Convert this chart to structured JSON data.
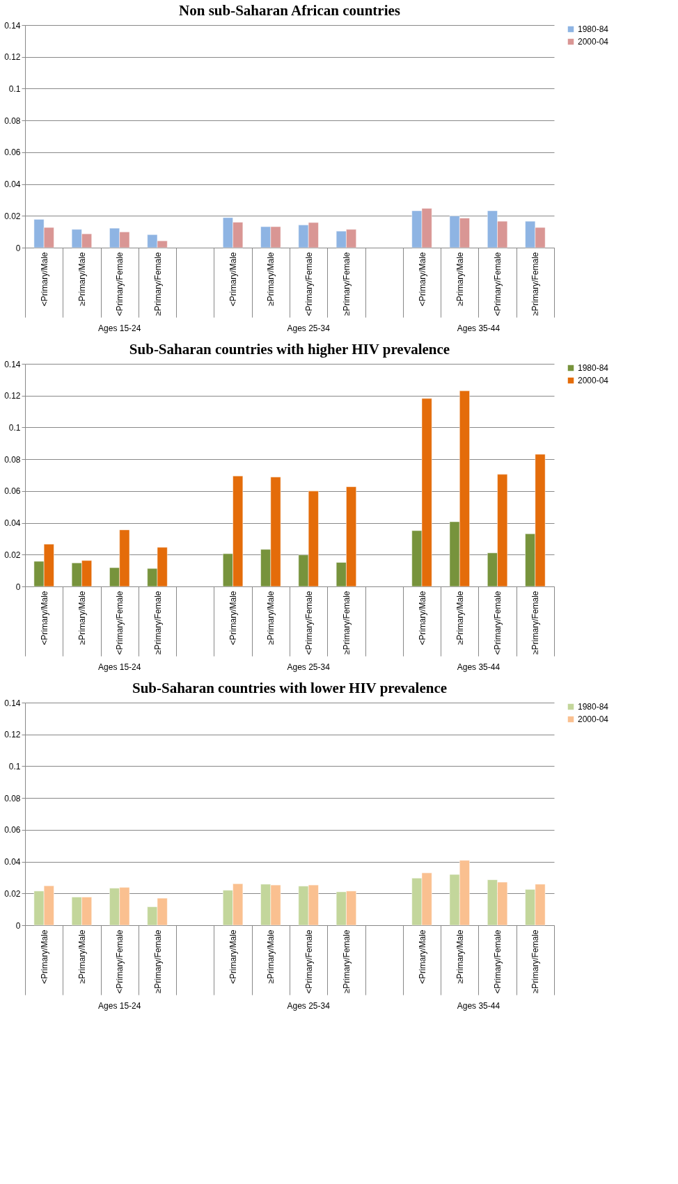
{
  "chart_data": [
    {
      "type": "bar",
      "title": "Non sub-Saharan African countries",
      "categories": [
        "<Primary/Male",
        "≥Primary/Male",
        "<Primary/Female",
        "≥Primary/Female",
        null,
        "<Primary/Male",
        "≥Primary/Male",
        "<Primary/Female",
        "≥Primary/Female",
        null,
        "<Primary/Male",
        "≥Primary/Male",
        "<Primary/Female",
        "≥Primary/Female"
      ],
      "series": [
        {
          "name": "1980-84",
          "color": "#8eb4e3",
          "values": [
            0.0178,
            0.0115,
            0.0122,
            0.0082,
            null,
            0.0189,
            0.0132,
            0.0143,
            0.0104,
            null,
            0.0232,
            0.0199,
            0.0232,
            0.0166
          ]
        },
        {
          "name": "2000-04",
          "color": "#d99694",
          "values": [
            0.0127,
            0.0087,
            0.0099,
            0.0043,
            null,
            0.016,
            0.0132,
            0.0158,
            0.0115,
            null,
            0.0247,
            0.0186,
            0.0166,
            0.0127
          ]
        }
      ],
      "annotations": [
        "Ages 15-24",
        "Ages 25-34",
        "Ages 35-44"
      ],
      "ylim": [
        0,
        0.14
      ],
      "yticks": [
        0,
        0.02,
        0.04,
        0.06,
        0.08,
        0.1,
        0.12,
        0.14
      ],
      "grid": "y",
      "legend": "right"
    },
    {
      "type": "bar",
      "title": "Sub-Saharan countries with higher HIV prevalence",
      "categories": [
        "<Primary/Male",
        "≥Primary/Male",
        "<Primary/Female",
        "≥Primary/Female",
        null,
        "<Primary/Male",
        "≥Primary/Male",
        "<Primary/Female",
        "≥Primary/Female",
        null,
        "<Primary/Male",
        "≥Primary/Male",
        "<Primary/Female",
        "≥Primary/Female"
      ],
      "series": [
        {
          "name": "1980-84",
          "color": "#77933c",
          "values": [
            0.0158,
            0.0148,
            0.0118,
            0.0113,
            null,
            0.0206,
            0.0233,
            0.0198,
            0.0151,
            null,
            0.0351,
            0.0407,
            0.0211,
            0.0331
          ]
        },
        {
          "name": "2000-04",
          "color": "#e46c0a",
          "values": [
            0.0266,
            0.0163,
            0.0356,
            0.0246,
            null,
            0.0695,
            0.0688,
            0.06,
            0.0627,
            null,
            0.1182,
            0.123,
            0.0705,
            0.0831
          ]
        }
      ],
      "annotations": [
        "Ages 15-24",
        "Ages 25-34",
        "Ages 35-44"
      ],
      "ylim": [
        0,
        0.14
      ],
      "yticks": [
        0,
        0.02,
        0.04,
        0.06,
        0.08,
        0.1,
        0.12,
        0.14
      ],
      "grid": "y",
      "legend": "right"
    },
    {
      "type": "bar",
      "title": "Sub-Saharan countries with lower HIV prevalence",
      "categories": [
        "<Primary/Male",
        "≥Primary/Male",
        "<Primary/Female",
        "≥Primary/Female",
        null,
        "<Primary/Male",
        "≥Primary/Male",
        "<Primary/Female",
        "≥Primary/Female",
        null,
        "<Primary/Male",
        "≥Primary/Male",
        "<Primary/Female",
        "≥Primary/Female"
      ],
      "series": [
        {
          "name": "1980-84",
          "color": "#c3d69b",
          "values": [
            0.0215,
            0.0177,
            0.0233,
            0.0116,
            null,
            0.022,
            0.0258,
            0.0246,
            0.021,
            null,
            0.0296,
            0.0319,
            0.0286,
            0.0225
          ]
        },
        {
          "name": "2000-04",
          "color": "#fac090",
          "values": [
            0.0248,
            0.0177,
            0.0238,
            0.017,
            null,
            0.0261,
            0.0253,
            0.0253,
            0.0215,
            null,
            0.0329,
            0.0408,
            0.0271,
            0.0258
          ]
        }
      ],
      "annotations": [
        "Ages 15-24",
        "Ages 25-34",
        "Ages 35-44"
      ],
      "ylim": [
        0,
        0.14
      ],
      "yticks": [
        0,
        0.02,
        0.04,
        0.06,
        0.08,
        0.1,
        0.12,
        0.14
      ],
      "grid": "y",
      "legend": "right"
    }
  ]
}
